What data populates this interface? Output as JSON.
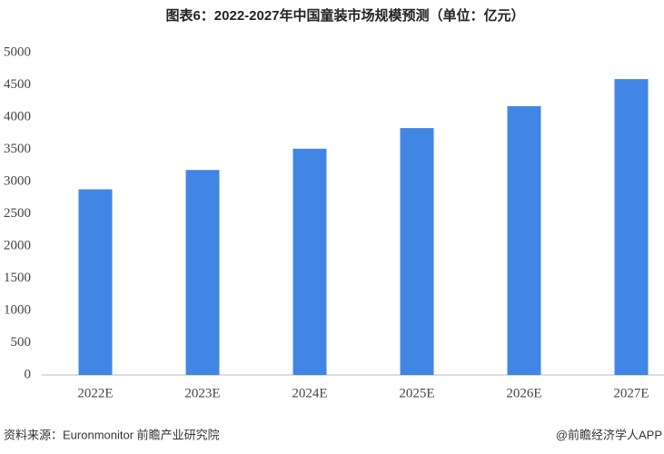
{
  "chart_data": {
    "type": "bar",
    "title": "图表6：2022-2027年中国童装市场规模预测（单位：亿元）",
    "categories": [
      "2022E",
      "2023E",
      "2024E",
      "2025E",
      "2026E",
      "2027E"
    ],
    "values": [
      2880,
      3180,
      3510,
      3830,
      4170,
      4590
    ],
    "color": "#4186e5",
    "ylim": [
      0,
      5000
    ],
    "yticks": [
      0,
      500,
      1000,
      1500,
      2000,
      2500,
      3000,
      3500,
      4000,
      4500,
      5000
    ],
    "grid": false
  },
  "footer": {
    "source": "资料来源：Euronmonitor 前瞻产业研究院",
    "brand": "@前瞻经济学人APP"
  }
}
